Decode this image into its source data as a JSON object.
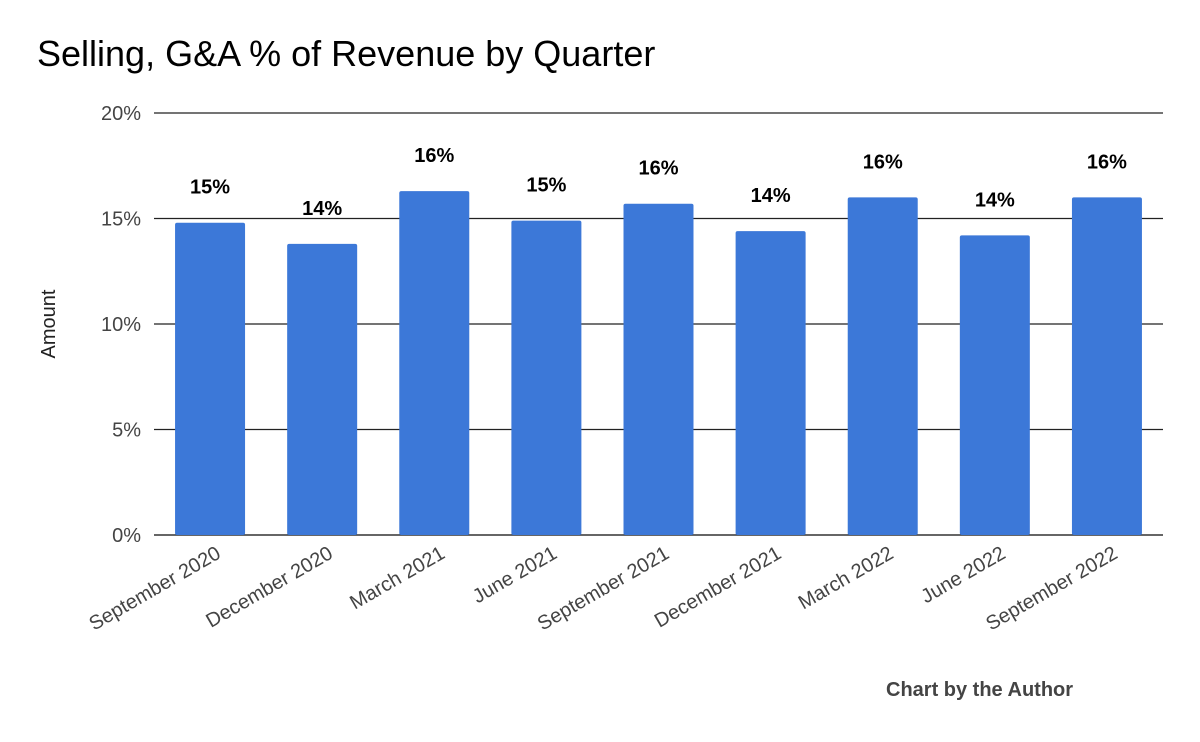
{
  "chart_data": {
    "type": "bar",
    "title": "Selling, G&A % of Revenue by Quarter",
    "xlabel": "",
    "ylabel": "Amount",
    "categories": [
      "September 2020",
      "December 2020",
      "March 2021",
      "June 2021",
      "September 2021",
      "December 2021",
      "March 2022",
      "June 2022",
      "September 2022"
    ],
    "series": [
      {
        "values": [
          14.8,
          13.8,
          16.3,
          14.9,
          15.7,
          14.4,
          16.0,
          14.2,
          16.0
        ],
        "data_labels": [
          "15%",
          "14%",
          "16%",
          "15%",
          "16%",
          "14%",
          "16%",
          "14%",
          "16%"
        ],
        "color": "#3c78d8"
      }
    ],
    "ylim": [
      0,
      20
    ],
    "yticks": [
      0,
      5,
      10,
      15,
      20
    ],
    "ytick_labels": [
      "0%",
      "5%",
      "10%",
      "15%",
      "20%"
    ],
    "grid": true,
    "legend": "none"
  },
  "credit": "Chart by the Author"
}
